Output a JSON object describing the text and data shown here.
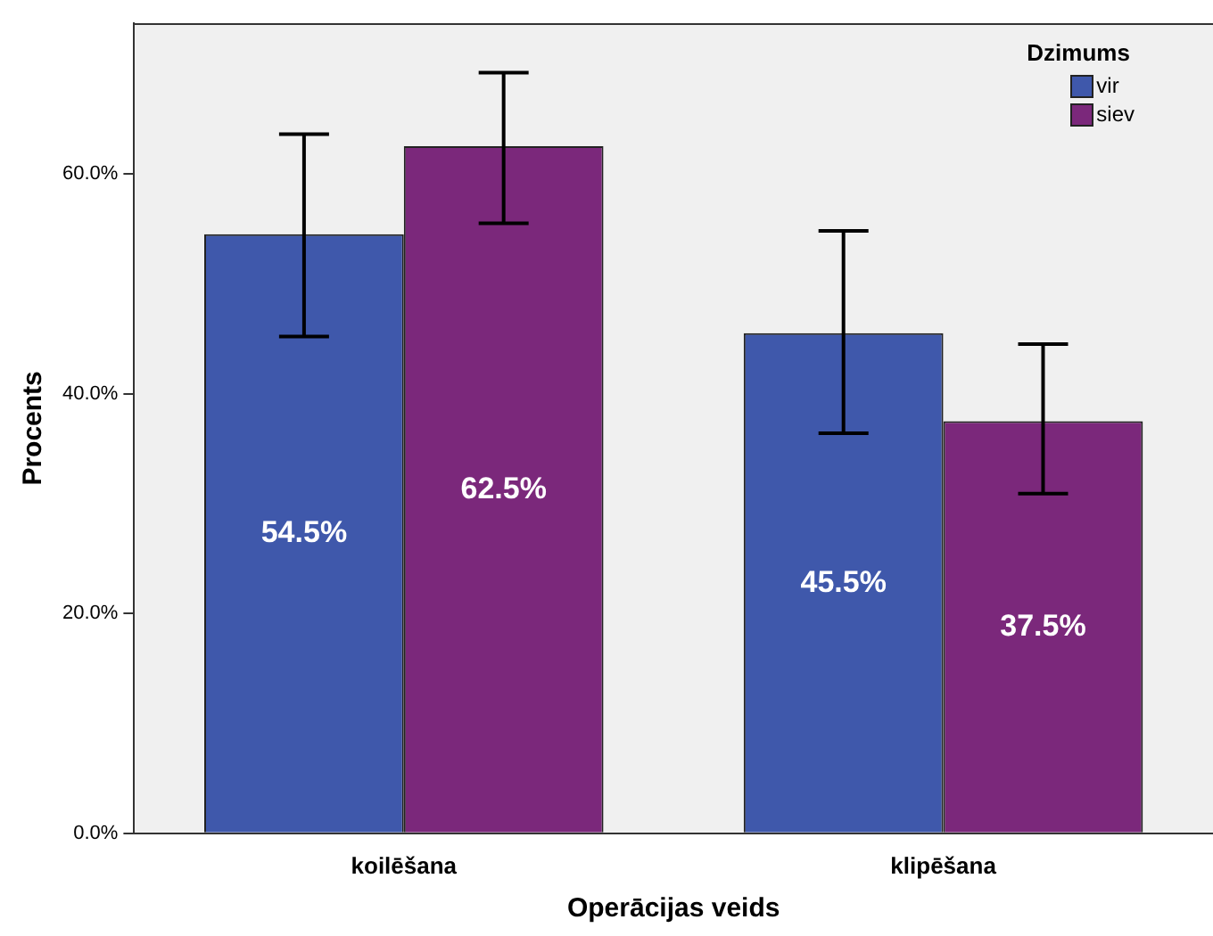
{
  "chart_data": {
    "type": "bar",
    "xlabel": "Operācijas veids",
    "ylabel": "Procents",
    "legend_title": "Dzimums",
    "legend": "top right",
    "categories": [
      "koilēšana",
      "klipēšana"
    ],
    "series": [
      {
        "name": "vir",
        "color": "#3f58ab",
        "values": [
          54.5,
          45.5
        ],
        "value_labels": [
          "54.5%",
          "45.5%"
        ],
        "errors": [
          [
            45.2,
            63.6
          ],
          [
            36.4,
            54.8
          ]
        ]
      },
      {
        "name": "siev",
        "color": "#7b287b",
        "values": [
          62.5,
          37.5
        ],
        "value_labels": [
          "62.5%",
          "37.5%"
        ],
        "errors": [
          [
            55.5,
            69.2
          ],
          [
            30.9,
            44.5
          ]
        ]
      }
    ],
    "ylim": [
      0,
      73.7
    ],
    "yticks": [
      {
        "value": 0,
        "label": "0.0%"
      },
      {
        "value": 20,
        "label": "20.0%"
      },
      {
        "value": 40,
        "label": "40.0%"
      },
      {
        "value": 60,
        "label": "60.0%"
      }
    ],
    "grid": false
  }
}
